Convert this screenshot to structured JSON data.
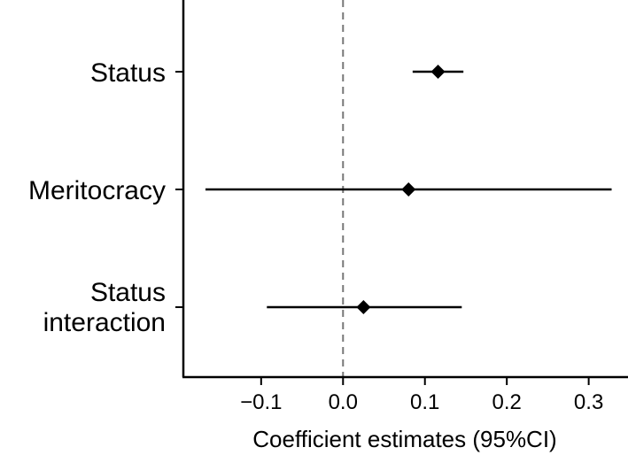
{
  "chart_data": {
    "type": "forest",
    "xlabel": "Coefficient estimates (95%CI)",
    "ylabel": "",
    "xlim": [
      -0.195,
      0.348
    ],
    "xticks": [
      {
        "value": -0.1,
        "label": "−0.1"
      },
      {
        "value": 0.0,
        "label": "0.0"
      },
      {
        "value": 0.1,
        "label": "0.1"
      },
      {
        "value": 0.2,
        "label": "0.2"
      },
      {
        "value": 0.3,
        "label": "0.3"
      }
    ],
    "reference_line": {
      "value": 0,
      "style": "dashed",
      "color": "#777777"
    },
    "marker": "diamond",
    "marker_color": "#000000",
    "grid": false,
    "legend": "none",
    "rows": [
      {
        "label": [
          "Status"
        ],
        "estimate": 0.116,
        "ci_low": 0.085,
        "ci_high": 0.147
      },
      {
        "label": [
          "Meritocracy"
        ],
        "estimate": 0.08,
        "ci_low": -0.168,
        "ci_high": 0.328
      },
      {
        "label": [
          "Status",
          "interaction"
        ],
        "estimate": 0.025,
        "ci_low": -0.093,
        "ci_high": 0.145
      }
    ]
  }
}
